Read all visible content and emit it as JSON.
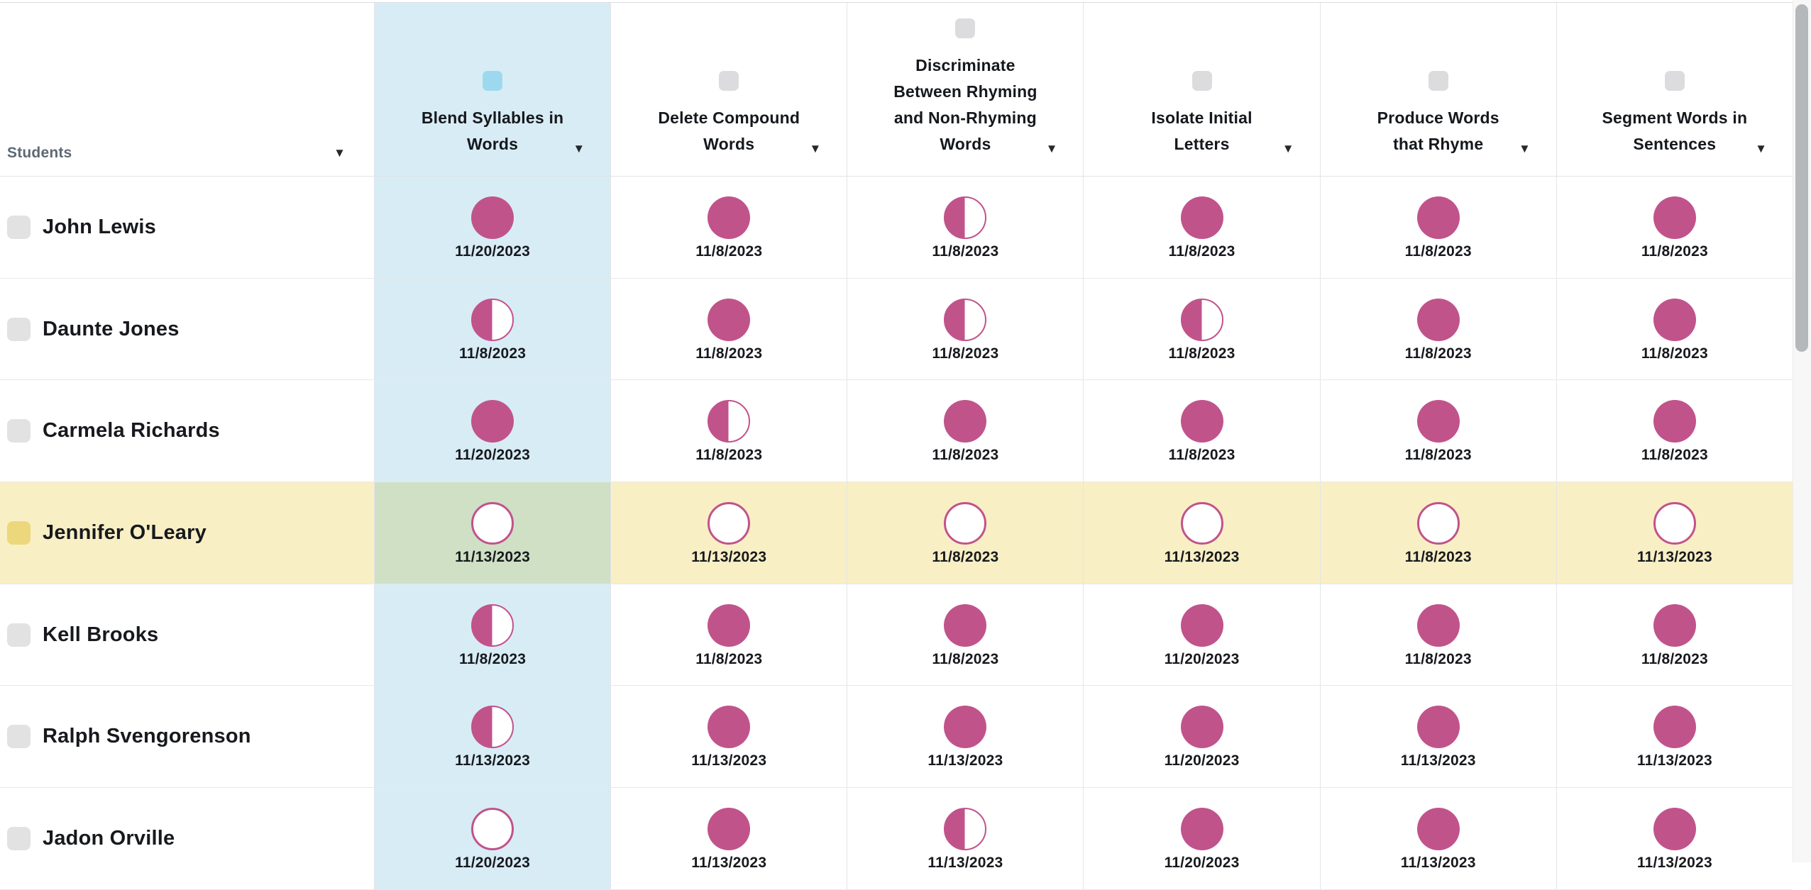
{
  "table": {
    "students_header": {
      "label": "Students"
    },
    "columns": [
      {
        "id": "blend-syllables-in-words",
        "label": "Blend Syllables in Words",
        "label_lines": [
          "Blend Syllables in",
          "Words"
        ],
        "selected": true
      },
      {
        "id": "delete-compound-words",
        "label": "Delete Compound Words",
        "label_lines": [
          "Delete Compound",
          "Words"
        ],
        "selected": false
      },
      {
        "id": "discriminate-rhyming",
        "label": "Discriminate Between Rhyming and Non-Rhyming Words",
        "label_lines": [
          "Discriminate",
          "Between Rhyming",
          "and Non-Rhyming",
          "Words"
        ],
        "selected": false
      },
      {
        "id": "isolate-initial-letters",
        "label": "Isolate Initial Letters",
        "label_lines": [
          "Isolate Initial",
          "Letters"
        ],
        "selected": false
      },
      {
        "id": "produce-words-that-rhyme",
        "label": "Produce Words that Rhyme",
        "label_lines": [
          "Produce Words",
          "that Rhyme"
        ],
        "selected": false
      },
      {
        "id": "segment-words-in-sentences",
        "label": "Segment Words in Sentences",
        "label_lines": [
          "Segment Words in",
          "Sentences"
        ],
        "selected": false
      }
    ],
    "rows": [
      {
        "name": "John Lewis",
        "highlighted": false,
        "cells": [
          {
            "state": "full",
            "date": "11/20/2023"
          },
          {
            "state": "full",
            "date": "11/8/2023"
          },
          {
            "state": "half",
            "date": "11/8/2023"
          },
          {
            "state": "full",
            "date": "11/8/2023"
          },
          {
            "state": "full",
            "date": "11/8/2023"
          },
          {
            "state": "full",
            "date": "11/8/2023"
          }
        ]
      },
      {
        "name": "Daunte Jones",
        "highlighted": false,
        "cells": [
          {
            "state": "half",
            "date": "11/8/2023"
          },
          {
            "state": "full",
            "date": "11/8/2023"
          },
          {
            "state": "half",
            "date": "11/8/2023"
          },
          {
            "state": "half",
            "date": "11/8/2023"
          },
          {
            "state": "full",
            "date": "11/8/2023"
          },
          {
            "state": "full",
            "date": "11/8/2023"
          }
        ]
      },
      {
        "name": "Carmela Richards",
        "highlighted": false,
        "cells": [
          {
            "state": "full",
            "date": "11/20/2023"
          },
          {
            "state": "half",
            "date": "11/8/2023"
          },
          {
            "state": "full",
            "date": "11/8/2023"
          },
          {
            "state": "full",
            "date": "11/8/2023"
          },
          {
            "state": "full",
            "date": "11/8/2023"
          },
          {
            "state": "full",
            "date": "11/8/2023"
          }
        ]
      },
      {
        "name": "Jennifer O'Leary",
        "highlighted": true,
        "cells": [
          {
            "state": "empty",
            "date": "11/13/2023"
          },
          {
            "state": "empty",
            "date": "11/13/2023"
          },
          {
            "state": "empty",
            "date": "11/8/2023"
          },
          {
            "state": "empty",
            "date": "11/13/2023"
          },
          {
            "state": "empty",
            "date": "11/8/2023"
          },
          {
            "state": "empty",
            "date": "11/13/2023"
          }
        ]
      },
      {
        "name": "Kell Brooks",
        "highlighted": false,
        "cells": [
          {
            "state": "half",
            "date": "11/8/2023"
          },
          {
            "state": "full",
            "date": "11/8/2023"
          },
          {
            "state": "full",
            "date": "11/8/2023"
          },
          {
            "state": "full",
            "date": "11/20/2023"
          },
          {
            "state": "full",
            "date": "11/8/2023"
          },
          {
            "state": "full",
            "date": "11/8/2023"
          }
        ]
      },
      {
        "name": "Ralph Svengorenson",
        "highlighted": false,
        "cells": [
          {
            "state": "half",
            "date": "11/13/2023"
          },
          {
            "state": "full",
            "date": "11/13/2023"
          },
          {
            "state": "full",
            "date": "11/13/2023"
          },
          {
            "state": "full",
            "date": "11/20/2023"
          },
          {
            "state": "full",
            "date": "11/13/2023"
          },
          {
            "state": "full",
            "date": "11/13/2023"
          }
        ]
      },
      {
        "name": "Jadon Orville",
        "highlighted": false,
        "cells": [
          {
            "state": "empty",
            "date": "11/20/2023"
          },
          {
            "state": "full",
            "date": "11/13/2023"
          },
          {
            "state": "half",
            "date": "11/13/2023"
          },
          {
            "state": "full",
            "date": "11/20/2023"
          },
          {
            "state": "full",
            "date": "11/13/2023"
          },
          {
            "state": "full",
            "date": "11/13/2023"
          }
        ]
      }
    ]
  },
  "icons": {
    "menu_arrow_glyph": "▼"
  },
  "colors": {
    "progress": "#c1538b",
    "selected_column_bg": "#d8ecf6",
    "highlight_row_bg": "#f9efc5",
    "highlight_intersect_bg": "#cfe0c5",
    "checkbox_default": "#e2e2e3",
    "checkbox_header_default": "#dcdcde",
    "checkbox_selected_column": "#9cd9ee",
    "checkbox_highlight_row": "#edd77d"
  }
}
